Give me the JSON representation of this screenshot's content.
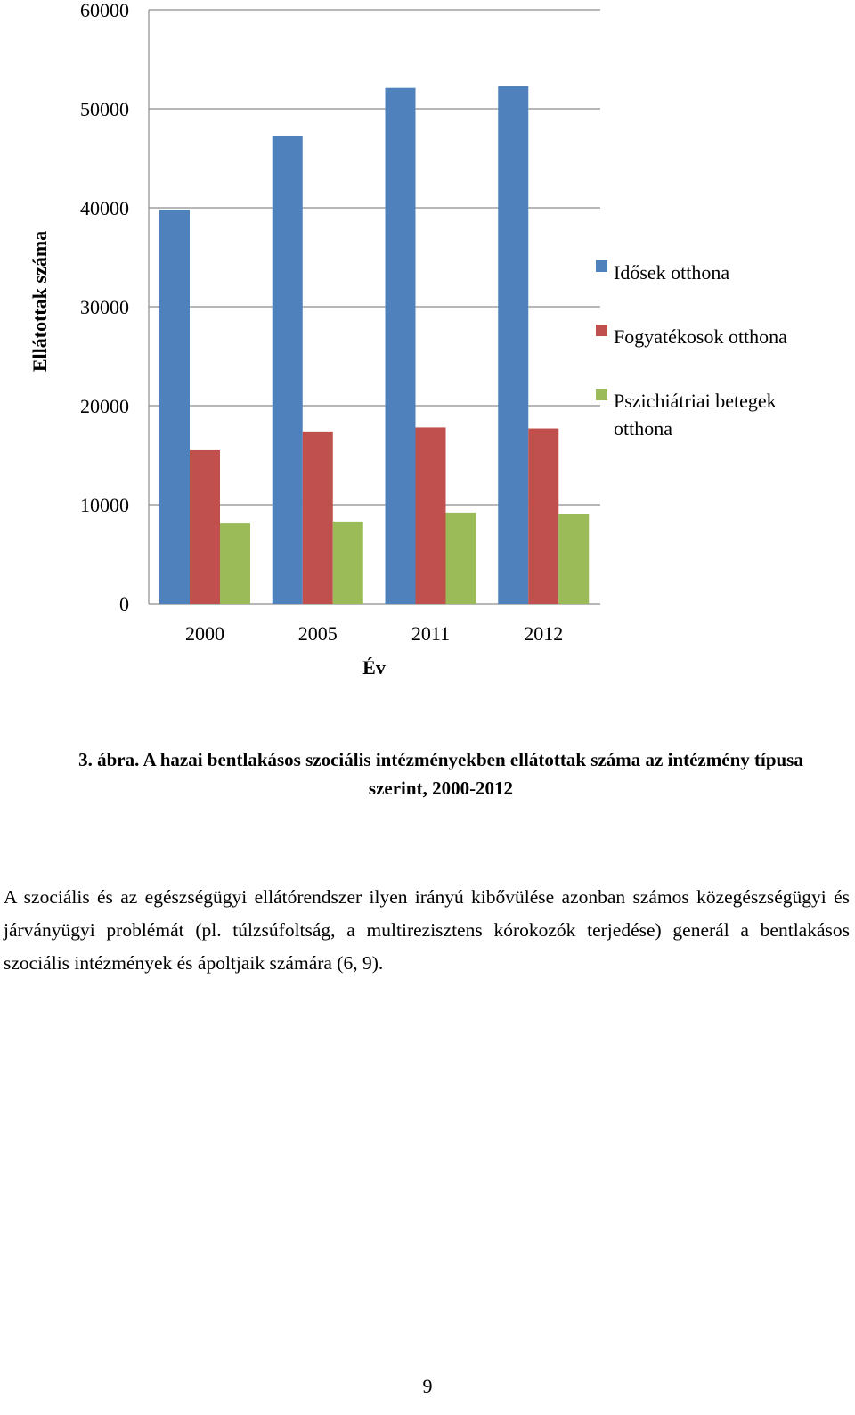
{
  "chart_data": {
    "type": "bar",
    "categories": [
      "2000",
      "2005",
      "2011",
      "2012"
    ],
    "series": [
      {
        "name": "Idősek otthona",
        "color": "#4f81bd",
        "values": [
          39800,
          47300,
          52100,
          52300
        ]
      },
      {
        "name": "Fogyatékosok otthona",
        "color": "#c0504d",
        "values": [
          15500,
          17400,
          17800,
          17700
        ]
      },
      {
        "name": "Pszichiátriai betegek otthona",
        "color": "#9bbb59",
        "values": [
          8100,
          8300,
          9200,
          9100
        ]
      }
    ],
    "xlabel": "Év",
    "ylabel": "Ellátottak száma",
    "ylim": [
      0,
      60000
    ],
    "yticks": [
      0,
      10000,
      20000,
      30000,
      40000,
      50000,
      60000
    ],
    "grid": true,
    "legend_position": "right"
  },
  "caption": {
    "label": "3. ábra.",
    "text": "A hazai bentlakásos szociális intézményekben ellátottak száma az intézmény típusa szerint, 2000-2012"
  },
  "paragraph": "A szociális és az egészségügyi ellátórendszer ilyen irányú kibővülése azonban számos közegészségügyi és járványügyi problémát (pl. túlzsúfoltság, a multirezisztens kórokozók terjedése) generál a bentlakásos szociális intézmények és ápoltjaik számára (6, 9).",
  "page_number": "9"
}
